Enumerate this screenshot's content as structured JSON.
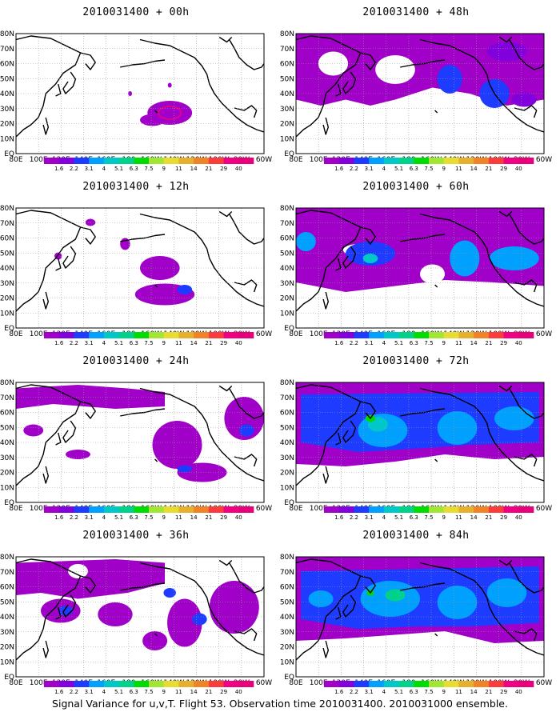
{
  "caption": "Signal Variance for u,v,T. Flight 53. Observation time 2010031400. 2010031000 ensemble.",
  "lat_labels": [
    "80N",
    "70N",
    "60N",
    "50N",
    "40N",
    "30N",
    "20N",
    "10N",
    "EQ"
  ],
  "lon_labels": [
    "80E",
    "100E",
    "120E",
    "140E",
    "160E",
    "180",
    "160W",
    "140W",
    "120W",
    "100W",
    "80W",
    "60W"
  ],
  "colorbar": {
    "labels": [
      "1.6",
      "2.2",
      "3.1",
      "4",
      "5.1",
      "6.3",
      "7.5",
      "9",
      "11",
      "14",
      "21",
      "29",
      "40"
    ],
    "colors": [
      "#a000c8",
      "#8200dc",
      "#1e3cff",
      "#00a0ff",
      "#00c8c8",
      "#00d28c",
      "#00dc00",
      "#a0e632",
      "#e6dc32",
      "#e6af2d",
      "#f08228",
      "#fa3c3c",
      "#f00082",
      "#e6007a"
    ]
  },
  "panels": [
    {
      "id": "p00",
      "title": "2010031400 + 00h"
    },
    {
      "id": "p48",
      "title": "2010031400 + 48h"
    },
    {
      "id": "p12",
      "title": "2010031400 + 12h"
    },
    {
      "id": "p60",
      "title": "2010031400 + 60h"
    },
    {
      "id": "p24",
      "title": "2010031400 + 24h"
    },
    {
      "id": "p72",
      "title": "2010031400 + 72h"
    },
    {
      "id": "p36",
      "title": "2010031400 + 36h"
    },
    {
      "id": "p84",
      "title": "2010031400 + 84h"
    }
  ]
}
